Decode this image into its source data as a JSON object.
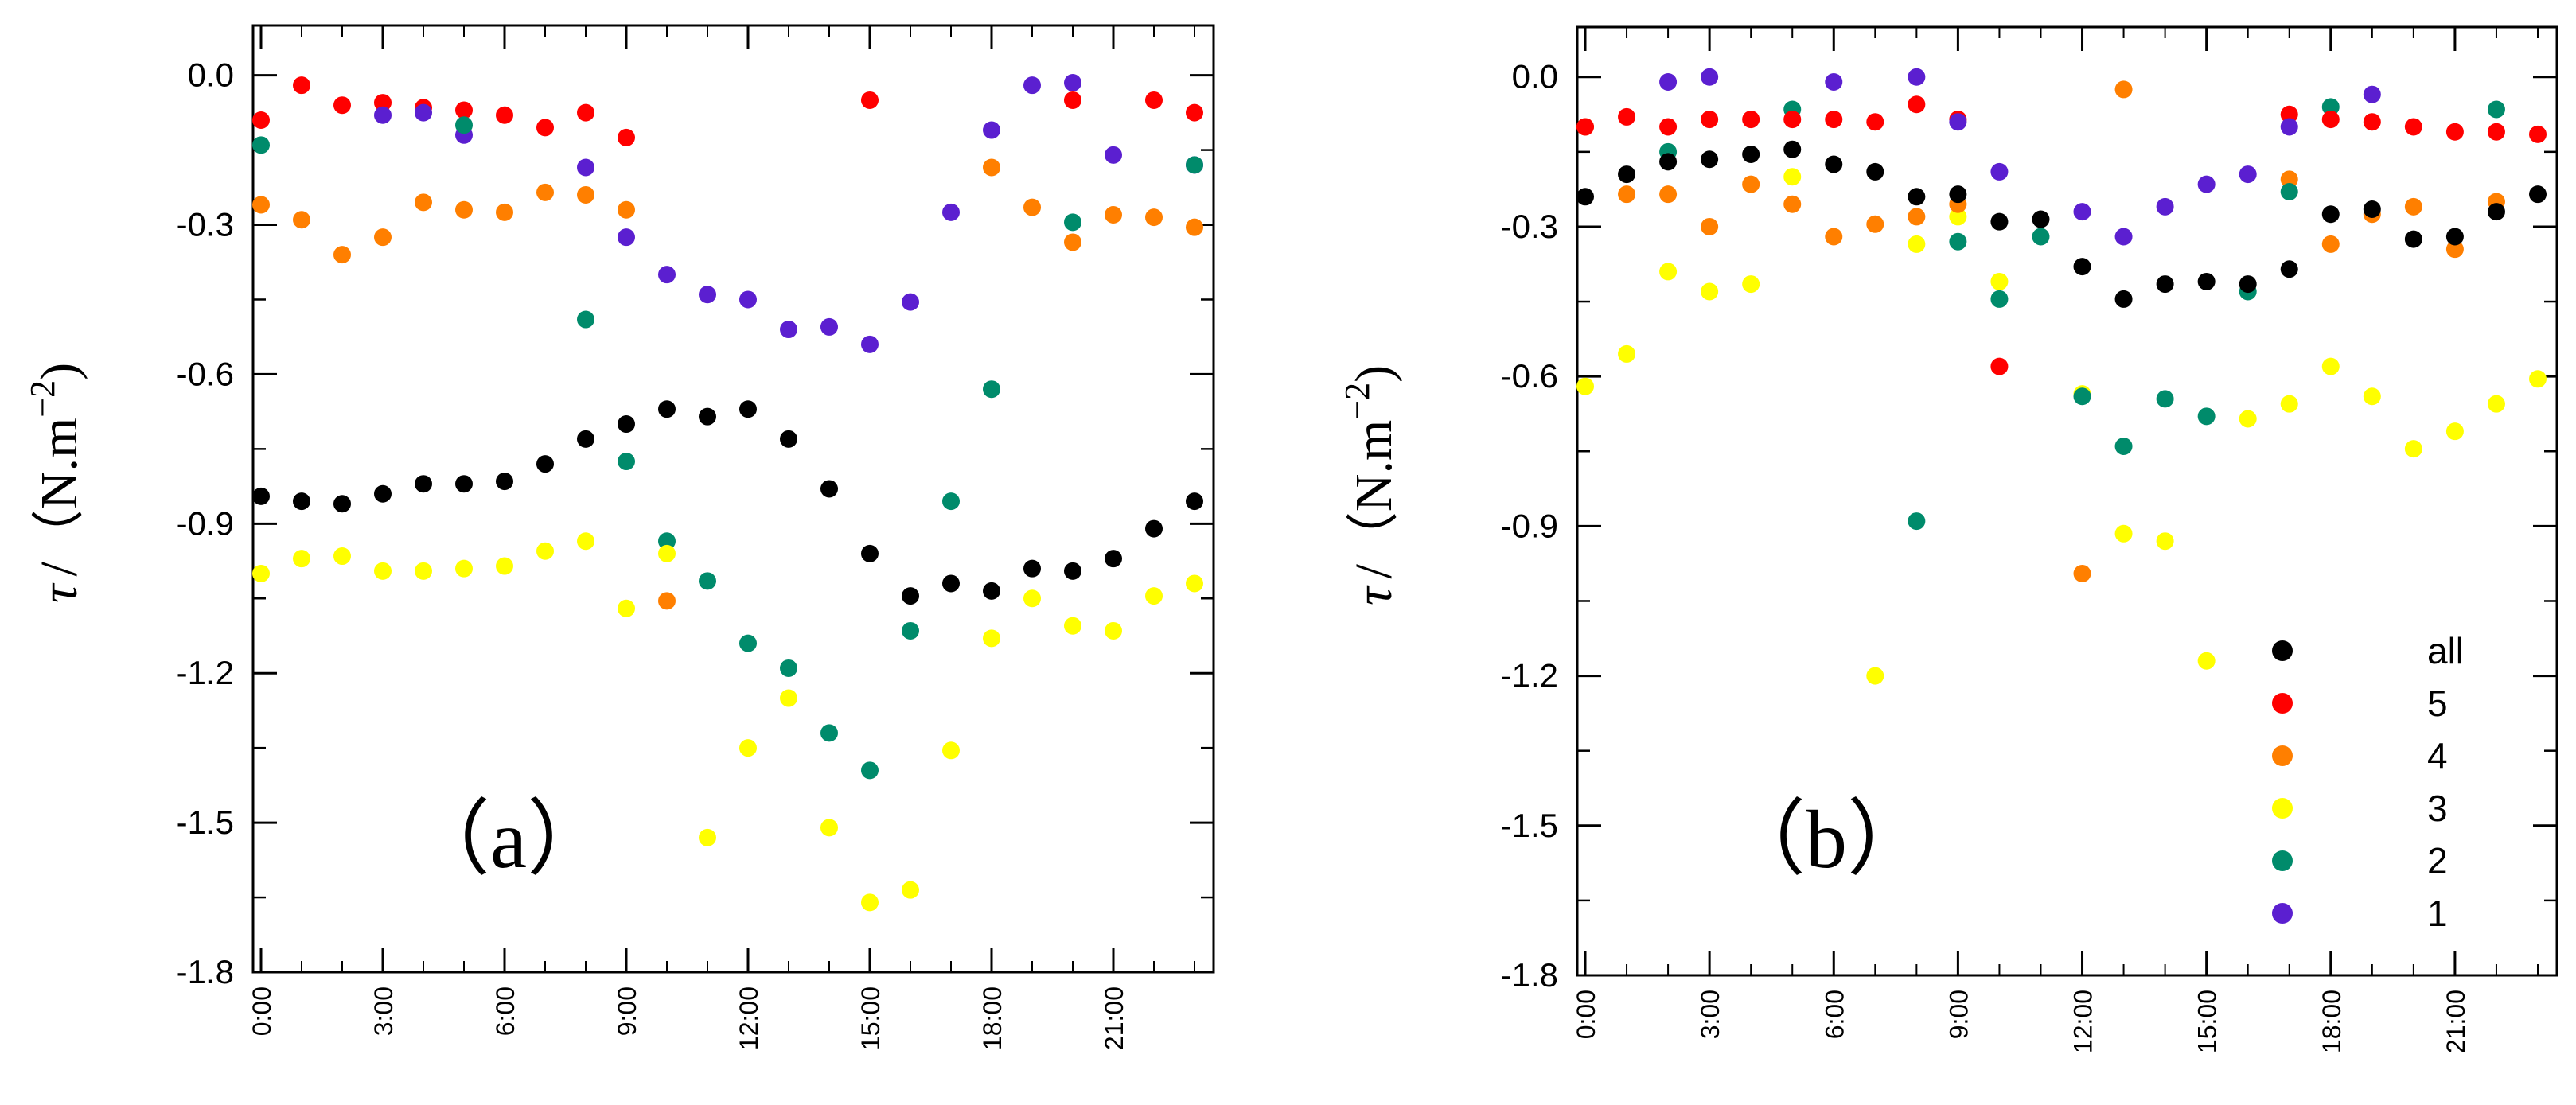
{
  "colors": {
    "all": "#000000",
    "5": "#ff0000",
    "4": "#ff7f00",
    "3": "#ffff00",
    "2": "#008b6b",
    "1": "#5b1fd0"
  },
  "chart_data": [
    {
      "type": "scatter",
      "panel_label": "（a）",
      "ylabel_symbol": "τ",
      "ylabel_unit": "/（N.m",
      "ylabel_exp": "−2",
      "ylabel_close": ")",
      "ylim": [
        -1.8,
        0.1
      ],
      "yticks": [
        0.0,
        -0.3,
        -0.6,
        -0.9,
        -1.2,
        -1.5,
        -1.8
      ],
      "ytick_labels": [
        "0.0",
        "-0.3",
        "-0.6",
        "-0.9",
        "-1.2",
        "-1.5",
        "-1.8"
      ],
      "xlim": [
        0,
        23
      ],
      "xticks": [
        0,
        3,
        6,
        9,
        12,
        15,
        18,
        21
      ],
      "xtick_labels": [
        "0:00",
        "3:00",
        "6:00",
        "9:00",
        "12:00",
        "15:00",
        "18:00",
        "21:00"
      ],
      "series": [
        {
          "name": "5",
          "x": [
            0,
            1,
            2,
            3,
            4,
            5,
            6,
            7,
            8,
            9,
            15,
            20,
            22,
            23
          ],
          "y": [
            -0.09,
            -0.02,
            -0.06,
            -0.055,
            -0.065,
            -0.07,
            -0.08,
            -0.105,
            -0.075,
            -0.125,
            -0.05,
            -0.05,
            -0.05,
            -0.075
          ]
        },
        {
          "name": "4",
          "x": [
            0,
            1,
            2,
            3,
            4,
            5,
            6,
            7,
            8,
            9,
            10,
            18,
            19,
            20,
            21,
            22,
            23
          ],
          "y": [
            -0.26,
            -0.29,
            -0.36,
            -0.325,
            -0.255,
            -0.27,
            -0.275,
            -0.235,
            -0.24,
            -0.27,
            -1.055,
            -0.185,
            -0.265,
            -0.335,
            -0.28,
            -0.285,
            -0.305
          ]
        },
        {
          "name": "1",
          "x": [
            3,
            4,
            5,
            8,
            9,
            10,
            11,
            12,
            13,
            14,
            15,
            16,
            17,
            18,
            19,
            20,
            21,
            23
          ],
          "y": [
            -0.08,
            -0.075,
            -0.12,
            -0.185,
            -0.325,
            -0.4,
            -0.44,
            -0.45,
            -0.51,
            -0.505,
            -0.54,
            -0.455,
            -0.275,
            -0.11,
            -0.02,
            -0.015,
            -0.16,
            -0.18
          ]
        },
        {
          "name": "2",
          "x": [
            0,
            5,
            8,
            9,
            10,
            11,
            12,
            13,
            14,
            15,
            16,
            17,
            18,
            20,
            23
          ],
          "y": [
            -0.14,
            -0.1,
            -0.49,
            -0.775,
            -0.935,
            -1.015,
            -1.14,
            -1.19,
            -1.32,
            -1.395,
            -1.115,
            -0.855,
            -0.63,
            -0.295,
            -0.18
          ]
        },
        {
          "name": "3",
          "x": [
            0,
            1,
            2,
            3,
            4,
            5,
            6,
            7,
            8,
            9,
            10,
            11,
            12,
            13,
            14,
            15,
            16,
            17,
            18,
            19,
            20,
            21,
            22,
            23
          ],
          "y": [
            -1.0,
            -0.97,
            -0.965,
            -0.995,
            -0.995,
            -0.99,
            -0.985,
            -0.955,
            -0.935,
            -1.07,
            -0.96,
            -1.53,
            -1.35,
            -1.25,
            -1.51,
            -1.66,
            -1.635,
            -1.355,
            -1.13,
            -1.05,
            -1.105,
            -1.115,
            -1.045,
            -1.02
          ]
        },
        {
          "name": "all",
          "x": [
            0,
            1,
            2,
            3,
            4,
            5,
            6,
            7,
            8,
            9,
            10,
            11,
            12,
            13,
            14,
            15,
            16,
            17,
            18,
            19,
            20,
            21,
            22,
            23
          ],
          "y": [
            -0.845,
            -0.855,
            -0.86,
            -0.84,
            -0.82,
            -0.82,
            -0.815,
            -0.78,
            -0.73,
            -0.7,
            -0.67,
            -0.685,
            -0.67,
            -0.73,
            -0.83,
            -0.96,
            -1.045,
            -1.02,
            -1.035,
            -0.99,
            -0.995,
            -0.97,
            -0.91,
            -0.855
          ]
        }
      ]
    },
    {
      "type": "scatter",
      "panel_label": "（b）",
      "ylabel_symbol": "τ",
      "ylabel_unit": "/（N.m",
      "ylabel_exp": "−2",
      "ylabel_close": ")",
      "ylim": [
        -1.8,
        0.1
      ],
      "yticks": [
        0.0,
        -0.3,
        -0.6,
        -0.9,
        -1.2,
        -1.5,
        -1.8
      ],
      "ytick_labels": [
        "0.0",
        "-0.3",
        "-0.6",
        "-0.9",
        "-1.2",
        "-1.5",
        "-1.8"
      ],
      "xlim": [
        0,
        23
      ],
      "xticks": [
        0,
        3,
        6,
        9,
        12,
        15,
        18,
        21
      ],
      "xtick_labels": [
        "0:00",
        "3:00",
        "6:00",
        "9:00",
        "12:00",
        "15:00",
        "18:00",
        "21:00"
      ],
      "legend": {
        "placement": "bottom-right",
        "entries": [
          "all",
          "5",
          "4",
          "3",
          "2",
          "1"
        ]
      },
      "series": [
        {
          "name": "3",
          "x": [
            0,
            1,
            2,
            3,
            4,
            5,
            7,
            8,
            9,
            10,
            12,
            13,
            14,
            15,
            16,
            17,
            18,
            19,
            20,
            21,
            22,
            23
          ],
          "y": [
            -0.62,
            -0.555,
            -0.39,
            -0.43,
            -0.415,
            -0.2,
            -1.2,
            -0.335,
            -0.28,
            -0.41,
            -0.635,
            -0.915,
            -0.93,
            -1.17,
            -0.685,
            -0.655,
            -0.58,
            -0.64,
            -0.745,
            -0.71,
            -0.655,
            -0.605
          ]
        },
        {
          "name": "4",
          "x": [
            0,
            1,
            2,
            3,
            4,
            5,
            6,
            7,
            8,
            9,
            12,
            13,
            17,
            18,
            19,
            20,
            21,
            22
          ],
          "y": [
            -0.1,
            -0.235,
            -0.235,
            -0.3,
            -0.215,
            -0.255,
            -0.32,
            -0.295,
            -0.28,
            -0.255,
            -0.995,
            -0.025,
            -0.205,
            -0.335,
            -0.275,
            -0.26,
            -0.345,
            -0.25
          ]
        },
        {
          "name": "2",
          "x": [
            2,
            5,
            8,
            9,
            10,
            11,
            12,
            13,
            14,
            15,
            16,
            17,
            18,
            22
          ],
          "y": [
            -0.15,
            -0.065,
            -0.89,
            -0.33,
            -0.445,
            -0.32,
            -0.64,
            -0.74,
            -0.645,
            -0.68,
            -0.43,
            -0.23,
            -0.06,
            -0.065
          ]
        },
        {
          "name": "5",
          "x": [
            0,
            1,
            2,
            3,
            4,
            5,
            6,
            7,
            8,
            9,
            10,
            17,
            18,
            19,
            20,
            21,
            22,
            23
          ],
          "y": [
            -0.1,
            -0.08,
            -0.1,
            -0.085,
            -0.085,
            -0.085,
            -0.085,
            -0.09,
            -0.055,
            -0.085,
            -0.58,
            -0.075,
            -0.085,
            -0.09,
            -0.1,
            -0.11,
            -0.11,
            -0.115
          ]
        },
        {
          "name": "1",
          "x": [
            2,
            3,
            6,
            8,
            9,
            10,
            12,
            13,
            14,
            15,
            16,
            17,
            19
          ],
          "y": [
            -0.01,
            0.0,
            -0.01,
            0.0,
            -0.09,
            -0.19,
            -0.27,
            -0.32,
            -0.26,
            -0.215,
            -0.195,
            -0.1,
            -0.035
          ]
        },
        {
          "name": "all",
          "x": [
            0,
            1,
            2,
            3,
            4,
            5,
            6,
            7,
            8,
            9,
            10,
            11,
            12,
            13,
            14,
            15,
            16,
            17,
            18,
            19,
            20,
            21,
            22,
            23
          ],
          "y": [
            -0.24,
            -0.195,
            -0.17,
            -0.165,
            -0.155,
            -0.145,
            -0.175,
            -0.19,
            -0.24,
            -0.235,
            -0.29,
            -0.285,
            -0.38,
            -0.445,
            -0.415,
            -0.41,
            -0.415,
            -0.385,
            -0.275,
            -0.265,
            -0.325,
            -0.32,
            -0.27,
            -0.235
          ]
        }
      ]
    }
  ]
}
